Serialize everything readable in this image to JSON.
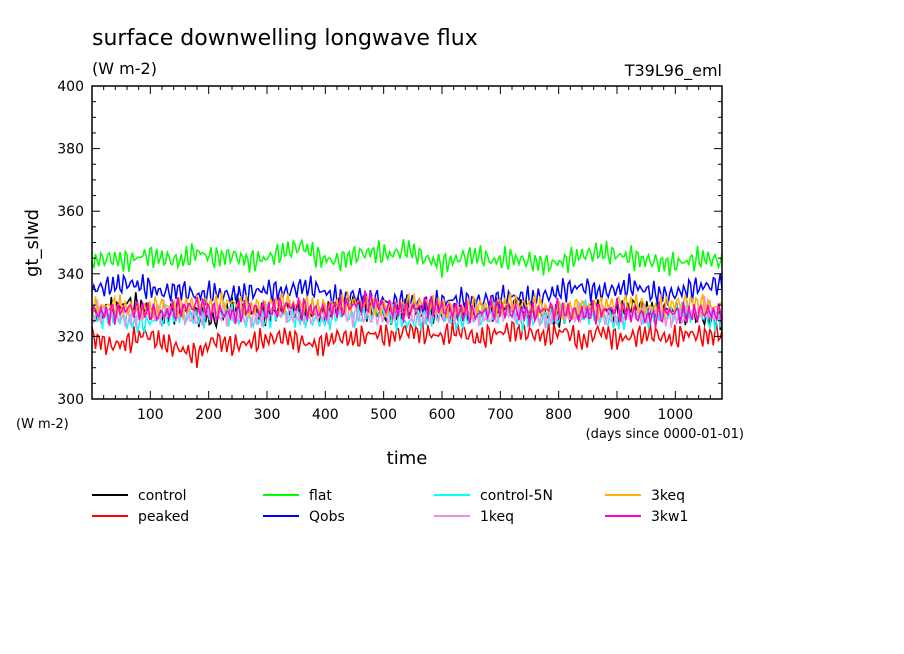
{
  "chart_data": {
    "type": "line",
    "title": "surface downwelling longwave flux",
    "units": "(W m-2)",
    "run_label": "T39L96_eml",
    "ylabel": "gt_slwd",
    "xlabel": "time",
    "x_units": "(days since 0000-01-01)",
    "y_units": "(W m-2)",
    "xlim": [
      0,
      1080
    ],
    "ylim": [
      300,
      400
    ],
    "x_ticks": [
      "100",
      "200",
      "300",
      "400",
      "500",
      "600",
      "700",
      "800",
      "900",
      "1000"
    ],
    "y_ticks": [
      "300",
      "320",
      "340",
      "360",
      "380",
      "400"
    ],
    "grid": false,
    "legend_position": "bottom",
    "x_step": 30,
    "series": [
      {
        "name": "control",
        "color": "#000000",
        "values": [
          327,
          328,
          331,
          329,
          326,
          329,
          327,
          325,
          330,
          328,
          327,
          329,
          328,
          326,
          329,
          331,
          328,
          327,
          329,
          328,
          326,
          328,
          327,
          329,
          330,
          328,
          327,
          326,
          328,
          329,
          327,
          330,
          328,
          329,
          327,
          326,
          325
        ]
      },
      {
        "name": "peaked",
        "color": "#ff0000",
        "values": [
          320,
          317,
          318,
          321,
          318,
          316,
          314,
          319,
          317,
          318,
          319,
          320,
          318,
          317,
          320,
          319,
          321,
          320,
          322,
          321,
          320,
          322,
          319,
          321,
          322,
          321,
          320,
          322,
          318,
          322,
          319,
          320,
          321,
          319,
          321,
          320,
          321
        ]
      },
      {
        "name": "flat",
        "color": "#00ff00",
        "values": [
          344,
          345,
          344,
          346,
          345,
          344,
          347,
          345,
          346,
          344,
          345,
          347,
          349,
          345,
          344,
          346,
          347,
          346,
          348,
          345,
          343,
          345,
          346,
          344,
          345,
          344,
          343,
          344,
          346,
          347,
          346,
          345,
          344,
          343,
          344,
          345,
          344
        ]
      },
      {
        "name": "Qobs",
        "color": "#0000ff",
        "values": [
          335,
          336,
          337,
          336,
          334,
          335,
          333,
          334,
          333,
          334,
          335,
          334,
          336,
          335,
          332,
          333,
          332,
          331,
          331,
          330,
          331,
          332,
          331,
          332,
          333,
          332,
          333,
          335,
          336,
          334,
          335,
          336,
          334,
          333,
          335,
          336,
          337
        ]
      },
      {
        "name": "control-5N",
        "color": "#00ffff",
        "values": [
          326,
          327,
          325,
          324,
          326,
          327,
          326,
          328,
          327,
          325,
          326,
          327,
          326,
          325,
          327,
          326,
          328,
          327,
          324,
          326,
          327,
          325,
          326,
          328,
          327,
          325,
          326,
          327,
          328,
          326,
          325,
          327,
          326,
          327,
          328,
          326,
          325
        ]
      },
      {
        "name": "1keq",
        "color": "#ee90e8",
        "values": [
          327,
          328,
          326,
          327,
          328,
          327,
          326,
          328,
          327,
          326,
          327,
          328,
          326,
          327,
          328,
          327,
          326,
          327,
          328,
          326,
          327,
          328,
          327,
          326,
          328,
          327,
          326,
          327,
          328,
          327,
          326,
          327,
          328,
          326,
          327,
          329,
          326
        ]
      },
      {
        "name": "3keq",
        "color": "#ffb000",
        "values": [
          329,
          330,
          329,
          328,
          330,
          329,
          331,
          330,
          331,
          329,
          330,
          331,
          330,
          329,
          330,
          331,
          330,
          329,
          330,
          331,
          329,
          328,
          330,
          329,
          331,
          330,
          329,
          328,
          330,
          329,
          331,
          330,
          329,
          330,
          331,
          330,
          329
        ]
      },
      {
        "name": "3kw1",
        "color": "#ff00c8",
        "values": [
          328,
          327,
          329,
          328,
          327,
          329,
          330,
          328,
          327,
          329,
          328,
          330,
          329,
          328,
          329,
          330,
          331,
          329,
          328,
          330,
          329,
          328,
          327,
          329,
          328,
          327,
          329,
          328,
          327,
          328,
          329,
          327,
          326,
          328,
          327,
          328,
          327
        ]
      }
    ]
  }
}
